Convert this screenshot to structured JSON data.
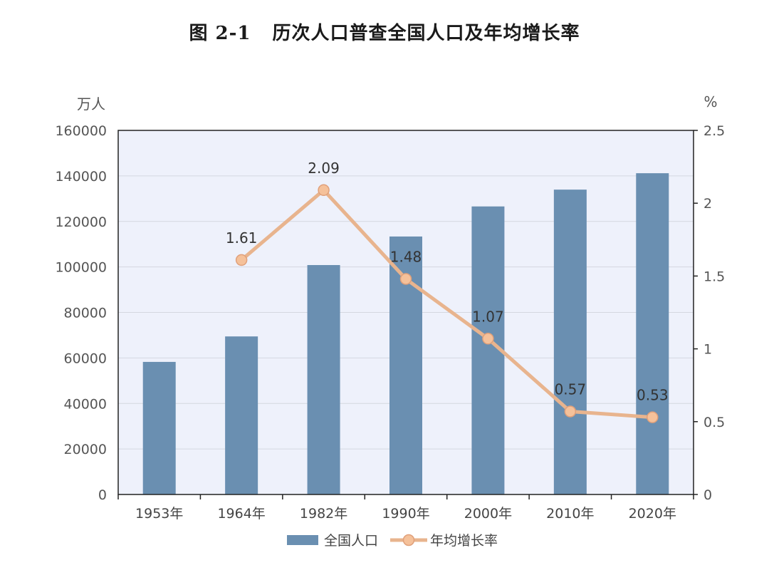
{
  "chart_data": {
    "title_prefix": "图 2-1",
    "title": "历次人口普查全国人口及年均增长率",
    "type": "bar+line",
    "categories": [
      "1953年",
      "1964年",
      "1982年",
      "1990年",
      "2000年",
      "2010年",
      "2020年"
    ],
    "y_left_unit": "万人",
    "y_right_unit": "%",
    "y_left_ticks": [
      "0",
      "20000",
      "40000",
      "60000",
      "80000",
      "100000",
      "120000",
      "140000",
      "160000"
    ],
    "y_right_ticks": [
      "0",
      "0.5",
      "1",
      "1.5",
      "2",
      "2.5"
    ],
    "y_left_range": [
      0,
      160000
    ],
    "y_right_range": [
      0,
      2.5
    ],
    "series": [
      {
        "name": "全国人口",
        "type": "bar",
        "axis": "left",
        "color": "#6a8fb1",
        "values": [
          58260,
          69458,
          100818,
          113368,
          126583,
          133972,
          141178
        ]
      },
      {
        "name": "年均增长率",
        "type": "line",
        "axis": "right",
        "color": "#e8b48e",
        "marker_fill": "#f5c19a",
        "values": [
          null,
          1.61,
          2.09,
          1.48,
          1.07,
          0.57,
          0.53
        ],
        "labels": [
          "",
          "1.61",
          "2.09",
          "1.48",
          "1.07",
          "0.57",
          "0.53"
        ]
      }
    ],
    "plot_background": "#eef1fb",
    "grid": true,
    "legend": "bottom"
  }
}
